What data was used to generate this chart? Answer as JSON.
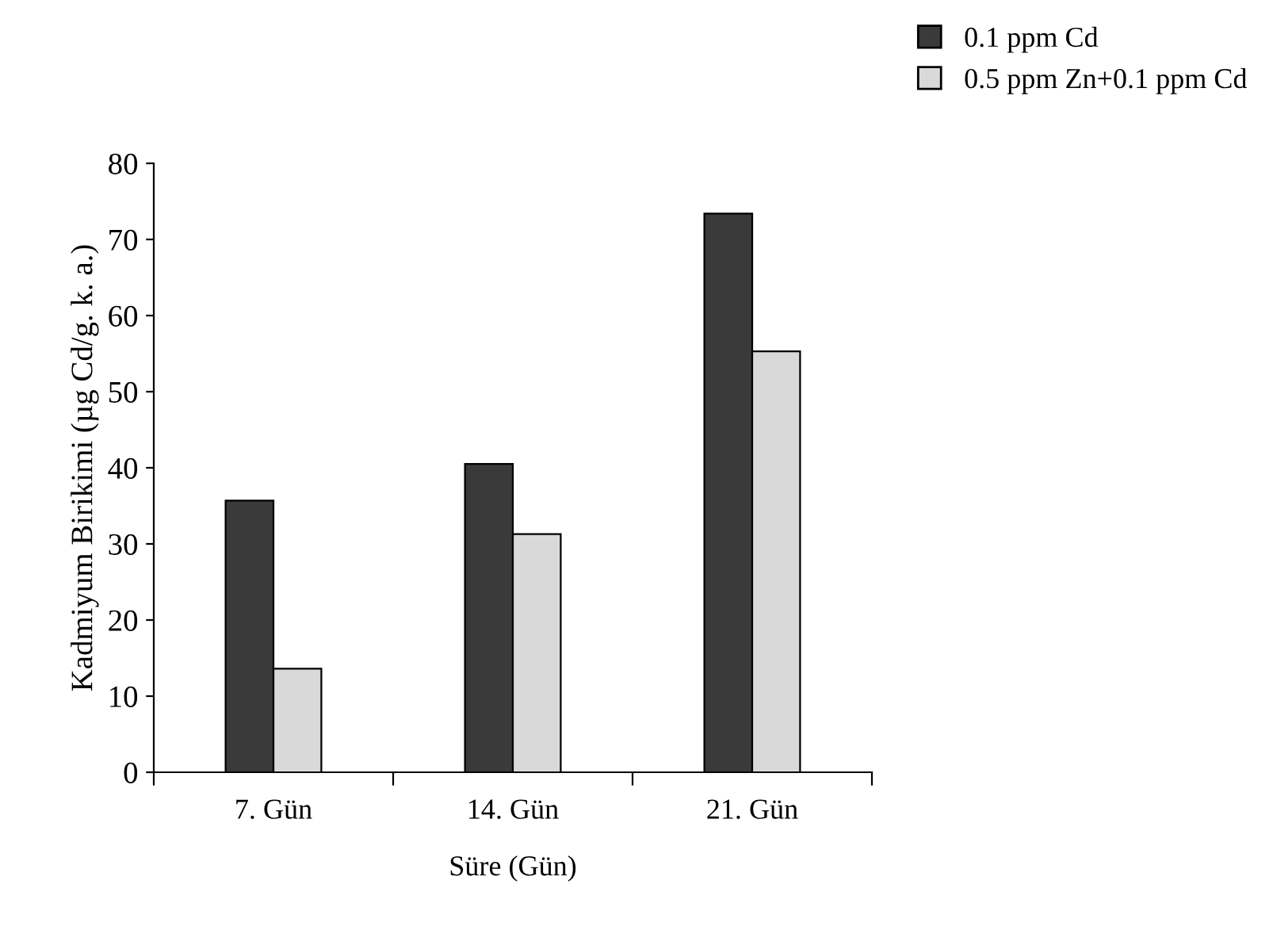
{
  "chart_data": {
    "type": "bar",
    "xlabel": "Süre (Gün)",
    "ylabel": "Kadmiyum Birikimi (µg Cd/g. k. a.)",
    "categories": [
      "7. Gün",
      "14. Gün",
      "21. Gün"
    ],
    "series": [
      {
        "name": "0.1 ppm Cd",
        "color": "#3a3a3a",
        "values": [
          35.7,
          40.5,
          73.4
        ]
      },
      {
        "name": "0.5 ppm Zn+0.1 ppm Cd",
        "color": "#d9d9d9",
        "values": [
          13.6,
          31.3,
          55.3
        ]
      }
    ],
    "ylim": [
      0,
      80
    ],
    "yticks": [
      0,
      10,
      20,
      30,
      40,
      50,
      60,
      70,
      80
    ],
    "grid": false,
    "legend": "top right"
  }
}
